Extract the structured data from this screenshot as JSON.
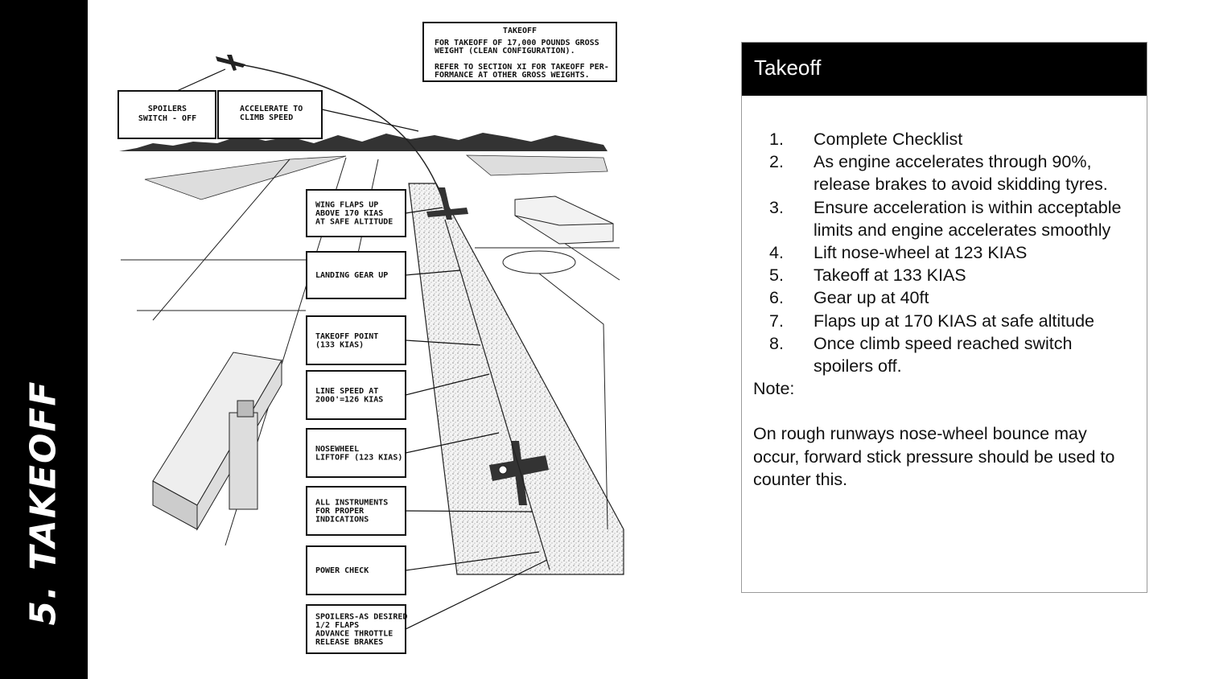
{
  "sidebar": {
    "title": "5. TAKEOFF"
  },
  "figure": {
    "header_box": {
      "title": "TAKEOFF",
      "lines": [
        "FOR TAKEOFF OF 17,000 POUNDS GROSS",
        "WEIGHT (CLEAN CONFIGURATION).",
        "REFER TO SECTION XI FOR TAKEOFF PER-",
        "FORMANCE AT OTHER GROSS WEIGHTS."
      ]
    },
    "spoilers_off": [
      "SPOILERS",
      "SWITCH - OFF"
    ],
    "accelerate": [
      "ACCELERATE TO",
      "CLIMB SPEED"
    ],
    "labels": [
      [
        "WING FLAPS UP",
        "ABOVE 170 KIAS",
        "AT SAFE ALTITUDE"
      ],
      [
        "LANDING GEAR UP"
      ],
      [
        "TAKEOFF POINT",
        "(133 KIAS)"
      ],
      [
        "LINE SPEED AT",
        "2000'=126 KIAS"
      ],
      [
        "NOSEWHEEL",
        "LIFTOFF (123 KIAS)"
      ],
      [
        "ALL INSTRUMENTS",
        "FOR PROPER",
        "INDICATIONS"
      ],
      [
        "POWER CHECK"
      ],
      [
        "SPOILERS-AS DESIRED",
        "1/2 FLAPS",
        "ADVANCE THROTTLE",
        "RELEASE BRAKES"
      ]
    ]
  },
  "card": {
    "title": "Takeoff",
    "steps": [
      {
        "num": "1.",
        "text": "Complete Checklist"
      },
      {
        "num": "2.",
        "text": "As engine accelerates through 90%, release brakes to avoid skidding tyres."
      },
      {
        "num": "3.",
        "text": "Ensure acceleration is within acceptable limits and engine accelerates smoothly"
      },
      {
        "num": "4.",
        "text": "Lift nose-wheel at 123 KIAS"
      },
      {
        "num": "5.",
        "text": "Takeoff at 133 KIAS"
      },
      {
        "num": "6.",
        "text": "Gear up at 40ft"
      },
      {
        "num": "7.",
        "text": "Flaps up at 170 KIAS at safe altitude"
      },
      {
        "num": "8.",
        "text": "Once climb speed reached switch spoilers off."
      }
    ],
    "note_label": "Note:",
    "note_text": "On rough runways nose-wheel bounce may occur, forward stick pressure should be used to counter this."
  }
}
